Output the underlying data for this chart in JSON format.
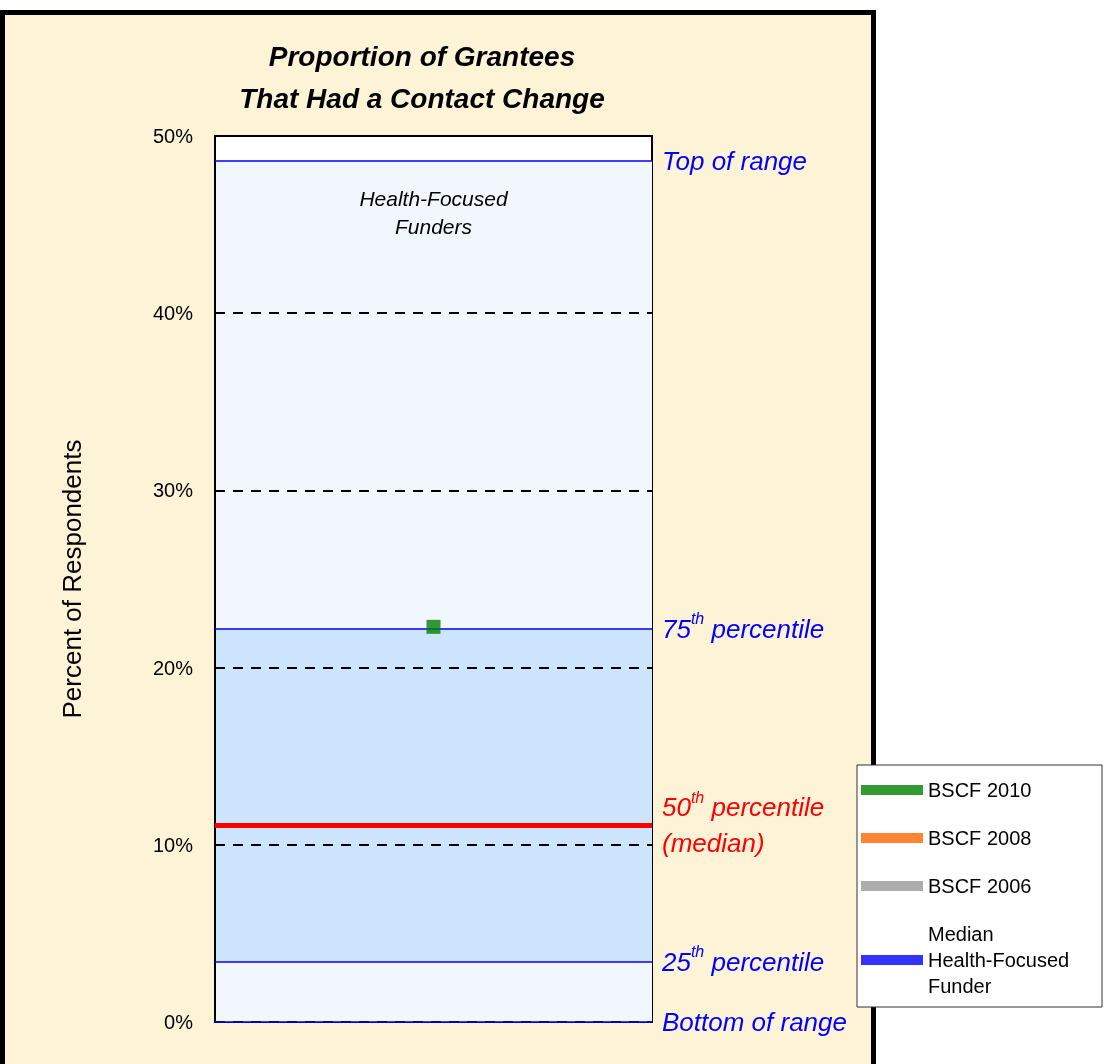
{
  "chart_data": {
    "type": "scatter",
    "title": "Proportion of Grantees\nThat Had a Contact Change",
    "ylabel": "Percent of Respondents",
    "categories": [
      null
    ],
    "series": [
      {
        "name": "BSCF 2010",
        "color": "#008000",
        "values": [
          22.3
        ]
      },
      {
        "name": "BSCF 2008",
        "color": "#ff6600",
        "values": [
          null
        ]
      },
      {
        "name": "BSCF 2006",
        "color": "#999999",
        "values": [
          null
        ]
      },
      {
        "name": "Median Health-Focused Funder",
        "color": "#0000ff",
        "values": [
          null
        ]
      }
    ],
    "marker": "square",
    "ylim": [
      0,
      50
    ],
    "yticks": [
      {
        "value": 0,
        "label": "0%"
      },
      {
        "value": 10,
        "label": "10%"
      },
      {
        "value": 20,
        "label": "20%"
      },
      {
        "value": 30,
        "label": "30%"
      },
      {
        "value": 40,
        "label": "40%"
      },
      {
        "value": 50,
        "label": "50%"
      }
    ],
    "grid": "y",
    "line_style": "dashed",
    "tick_labels": "y",
    "legend": "bottom right",
    "bands": [
      {
        "axis": "y",
        "from": 0,
        "to": 48.6,
        "label": "Health-Focused\nFunders",
        "color": "#f2f7fe"
      },
      {
        "axis": "y",
        "from": 3.4,
        "to": 22.2,
        "color": "#cce4fc"
      }
    ],
    "ref_lines": [
      {
        "axis": "y",
        "value": 48.6,
        "label": "Top of range",
        "color": "#0000ff"
      },
      {
        "axis": "y",
        "value": 22.2,
        "label": "75$^{th}$ percentile",
        "color": "#0000ff"
      },
      {
        "axis": "y",
        "value": 11.1,
        "label": "50$^{th}$ percentile\n(median)",
        "color": "#ff0000"
      },
      {
        "axis": "y",
        "value": 3.4,
        "label": "25$^{th}$ percentile",
        "color": "#0000ff"
      },
      {
        "axis": "y",
        "value": 0,
        "label": "Bottom of range",
        "color": "#0000ff"
      }
    ]
  }
}
